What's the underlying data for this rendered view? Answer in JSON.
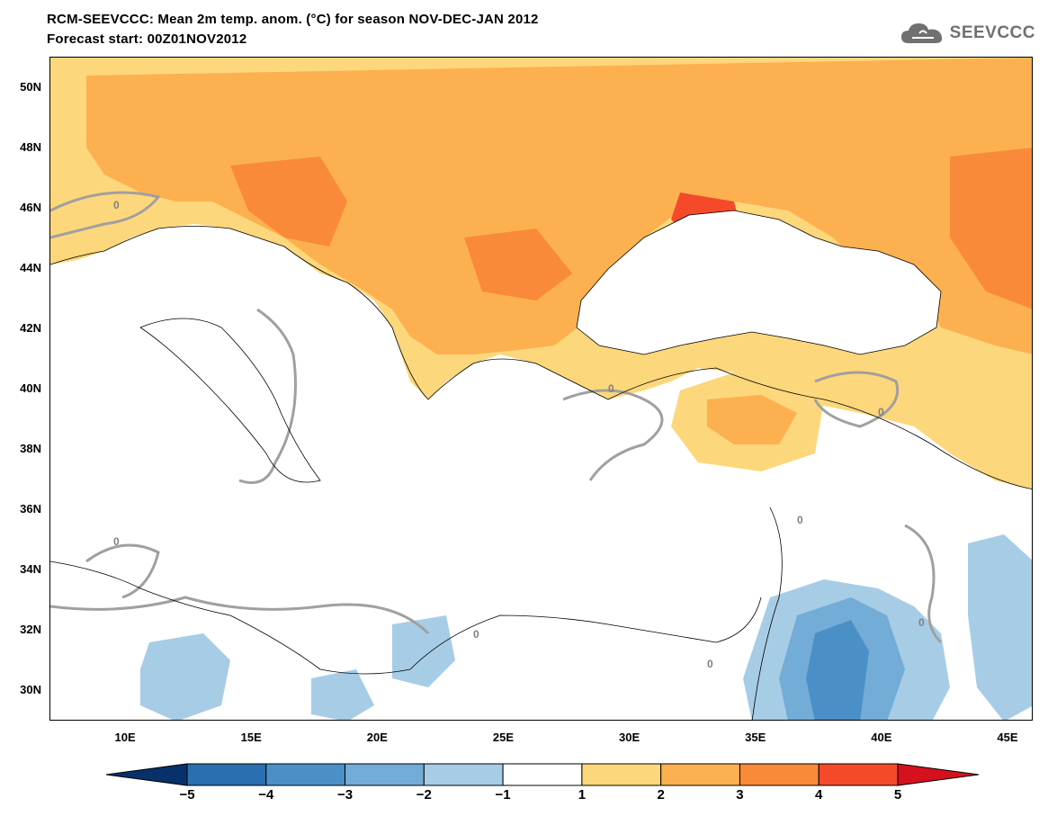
{
  "title_line1": "RCM-SEEVCCC: Mean 2m temp. anom. (°C) for season NOV-DEC-JAN 2012",
  "title_line2": "Forecast start: 00Z01NOV2012",
  "logo_text": "SEEVCCC",
  "lat_labels": [
    "50N",
    "48N",
    "46N",
    "44N",
    "42N",
    "40N",
    "38N",
    "36N",
    "34N",
    "32N",
    "30N"
  ],
  "lat_values": [
    50,
    48,
    46,
    44,
    42,
    40,
    38,
    36,
    34,
    32,
    30
  ],
  "lon_labels": [
    "10E",
    "15E",
    "20E",
    "25E",
    "30E",
    "35E",
    "40E",
    "45E"
  ],
  "lon_values": [
    10,
    15,
    20,
    25,
    30,
    35,
    40,
    45
  ],
  "map_extent": {
    "lon_min": 7,
    "lon_max": 46,
    "lat_min": 29,
    "lat_max": 51
  },
  "contour_zero_labels": [
    "0",
    "0",
    "0",
    "0",
    "0",
    "0",
    "0",
    "0"
  ],
  "colorbar": {
    "levels": [
      "−5",
      "−4",
      "−3",
      "−2",
      "−1",
      "1",
      "2",
      "3",
      "4",
      "5"
    ],
    "colors": [
      "#08306b",
      "#2a6fb0",
      "#4b8fc7",
      "#73acd7",
      "#a7cce6",
      "#ffffff",
      "#fdd77b",
      "#fdb04f",
      "#f98a3a",
      "#f44a2a",
      "#d5111d"
    ]
  },
  "palette": {
    "sea": "#ffffff",
    "warm1": "#fdd77b",
    "warm2": "#fdb04f",
    "warm3": "#f98a3a",
    "warm4": "#f44a2a",
    "cool1": "#a7cce6",
    "cool2": "#73acd7",
    "cool3": "#4b8fc7",
    "contour": "#a0a0a0"
  }
}
